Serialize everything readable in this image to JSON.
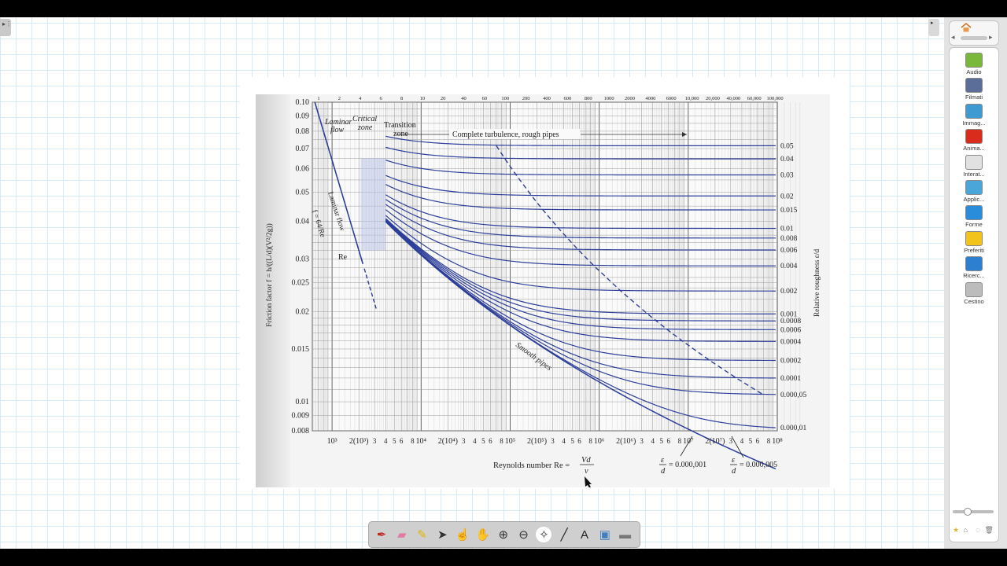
{
  "app": {
    "left_handle_glyph": "▸⋮",
    "panel_toggle_glyph": "▸",
    "nav_prev": "◂",
    "nav_next": "▸"
  },
  "gallery": {
    "items": [
      {
        "label": "Audio",
        "icon": "audio-icon",
        "color": "#79b83b"
      },
      {
        "label": "Filmati",
        "icon": "film-icon",
        "color": "#5a6e98"
      },
      {
        "label": "Immag...",
        "icon": "image-icon",
        "color": "#3f9ad1"
      },
      {
        "label": "Anima...",
        "icon": "flash-icon",
        "color": "#d92c1d"
      },
      {
        "label": "Interat...",
        "icon": "interactive-icon",
        "color": "#e1e1e1"
      },
      {
        "label": "Applic...",
        "icon": "apps-icon",
        "color": "#4aa5d8"
      },
      {
        "label": "Forme",
        "icon": "shapes-icon",
        "color": "#2a8ddb"
      },
      {
        "label": "Preferiti",
        "icon": "favorites-icon",
        "color": "#f2c31b"
      },
      {
        "label": "Ricerc...",
        "icon": "search-web-icon",
        "color": "#2c7fd1"
      },
      {
        "label": "Cestino",
        "icon": "trash-icon",
        "color": "#bcbcbc"
      }
    ]
  },
  "toolbar": {
    "tools": [
      {
        "name": "pen-tool",
        "glyph": "✒",
        "color": "#c0291b"
      },
      {
        "name": "eraser-tool",
        "glyph": "▰",
        "color": "#e27aa5"
      },
      {
        "name": "highlighter-tool",
        "glyph": "✎",
        "color": "#e0b400"
      },
      {
        "name": "select-tool",
        "glyph": "➤",
        "color": "#333333"
      },
      {
        "name": "touch-tool",
        "glyph": "☝",
        "color": "#d78a3a"
      },
      {
        "name": "pan-tool",
        "glyph": "✋",
        "color": "#d78a3a"
      },
      {
        "name": "zoom-in-tool",
        "glyph": "⊕",
        "color": "#333333"
      },
      {
        "name": "zoom-out-tool",
        "glyph": "⊖",
        "color": "#333333"
      },
      {
        "name": "magic-pen-tool",
        "glyph": "✧",
        "color": "#333333"
      },
      {
        "name": "line-tool",
        "glyph": "╱",
        "color": "#222222"
      },
      {
        "name": "text-tool",
        "glyph": "A",
        "color": "#222222"
      },
      {
        "name": "screen-tool",
        "glyph": "▣",
        "color": "#3f7fc2"
      },
      {
        "name": "menu-tool",
        "glyph": "▬",
        "color": "#777777"
      }
    ]
  },
  "chart_data": {
    "type": "line",
    "title": "",
    "xlabel": "Reynolds number Re = Vd/ν",
    "ylabel": "Friction factor f = h/((L/d)(V²/2g))",
    "y2label": "Relative roughness ε/d",
    "xscale": "log",
    "yscale": "log",
    "xlim": [
      600,
      100000000
    ],
    "ylim": [
      0.008,
      0.1
    ],
    "x_tick_labels": [
      "10³",
      "2(10³)",
      "3",
      "4",
      "5",
      "6",
      "8",
      "10⁴",
      "2(10⁴)",
      "3",
      "4",
      "5",
      "6",
      "8",
      "10⁵",
      "2(10⁵)",
      "3",
      "4",
      "5",
      "6",
      "8",
      "10⁶",
      "2(10⁶)",
      "3",
      "4",
      "5",
      "6",
      "8",
      "10⁷",
      "2(10⁷)",
      "3",
      "4",
      "5",
      "6",
      "8",
      "10⁸"
    ],
    "y_tick_labels": [
      "0.10",
      "0.09",
      "0.08",
      "0.07",
      "0.06",
      "0.05",
      "0.04",
      "0.03",
      "0.025",
      "0.02",
      "0.015",
      "0.01",
      "0.009",
      "0.008"
    ],
    "top_scale_labels": [
      "1",
      "2",
      "4",
      "6",
      "8",
      "10",
      "20",
      "40",
      "60",
      "100",
      "200",
      "400",
      "600",
      "800",
      "1000",
      "2000",
      "4000",
      "6000",
      "10,000",
      "20,000",
      "40,000",
      "60,000",
      "100,000"
    ],
    "roughness_labels": [
      "0.05",
      "0.04",
      "0.03",
      "0.02",
      "0.015",
      "0.01",
      "0.008",
      "0.006",
      "0.004",
      "0.002",
      "0.001",
      "0.0008",
      "0.0006",
      "0.0004",
      "0.0002",
      "0.0001",
      "0.000,05",
      "0.000,01"
    ],
    "roughness_values": [
      0.05,
      0.04,
      0.03,
      0.02,
      0.015,
      0.01,
      0.008,
      0.006,
      0.004,
      0.002,
      0.001,
      0.0008,
      0.0006,
      0.0004,
      0.0002,
      0.0001,
      5e-05,
      1e-05
    ],
    "annotations": {
      "laminar": "Laminar",
      "flow": "flow",
      "critical": "Critical",
      "zone": "zone",
      "transition": "Transition",
      "transition_zone": "zone",
      "complete_turbulence": "Complete turbulence, rough pipes",
      "laminar_flow_line": "Laminar flow",
      "f_64": "f = 64/Re",
      "re_cr": "Re",
      "smooth_pipes": "Smooth pipes",
      "re_formula_left": "Reynolds number Re =",
      "re_formula_num": "Vd",
      "re_formula_den": "ν",
      "eps1_label": "= 0.000,001",
      "eps2_label": "= 0.000,005",
      "eps_symbol": "ε",
      "d_symbol": "d"
    }
  }
}
